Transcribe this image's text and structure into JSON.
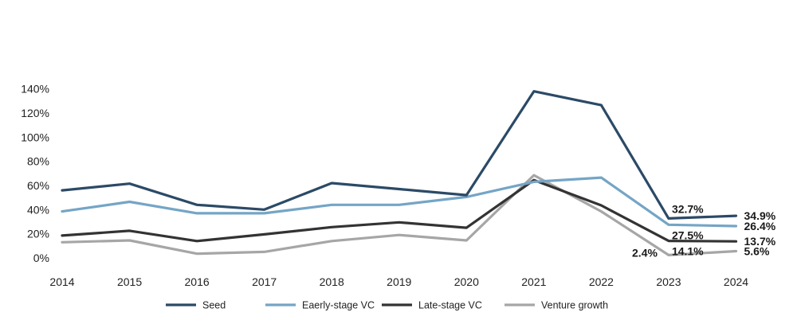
{
  "chart_data": {
    "type": "line",
    "x": [
      "2014",
      "2015",
      "2016",
      "2017",
      "2018",
      "2019",
      "2020",
      "2021",
      "2022",
      "2023",
      "2024"
    ],
    "ylim": [
      0,
      140
    ],
    "yticks": [
      0,
      20,
      40,
      60,
      80,
      100,
      120,
      140
    ],
    "ytick_labels": [
      "0%",
      "20%",
      "40%",
      "60%",
      "80%",
      "100%",
      "120%",
      "140%"
    ],
    "grid": false,
    "legend_position": "bottom",
    "series": [
      {
        "name": "Seed",
        "color": "#2b4a66",
        "values": [
          56,
          61.5,
          44,
          40,
          62,
          57,
          52,
          138,
          126.5,
          32.7,
          34.9
        ]
      },
      {
        "name": "Eaerly-stage VC",
        "color": "#74a5c6",
        "values": [
          38.5,
          46.5,
          37,
          37,
          44,
          44,
          50.5,
          63,
          66.5,
          27.5,
          26.4
        ]
      },
      {
        "name": "Late-stage VC",
        "color": "#333333",
        "values": [
          18.5,
          22.5,
          14,
          19.5,
          25.5,
          29.5,
          25,
          64.5,
          43.5,
          14.1,
          13.7
        ]
      },
      {
        "name": "Venture growth",
        "color": "#a6a6a6",
        "values": [
          13,
          14.5,
          3.5,
          5,
          14,
          19,
          14.5,
          68.5,
          38.5,
          2.4,
          5.6
        ]
      }
    ],
    "data_labels": [
      {
        "series": 0,
        "index": 9,
        "text": "32.7%",
        "side": "above"
      },
      {
        "series": 0,
        "index": 10,
        "text": "34.9%",
        "side": "right"
      },
      {
        "series": 1,
        "index": 9,
        "text": "27.5%",
        "side": "below"
      },
      {
        "series": 1,
        "index": 10,
        "text": "26.4%",
        "side": "right"
      },
      {
        "series": 2,
        "index": 9,
        "text": "14.1%",
        "side": "below"
      },
      {
        "series": 2,
        "index": 10,
        "text": "13.7%",
        "side": "right"
      },
      {
        "series": 3,
        "index": 9,
        "text": "2.4%",
        "side": "left"
      },
      {
        "series": 3,
        "index": 10,
        "text": "5.6%",
        "side": "right"
      }
    ]
  }
}
